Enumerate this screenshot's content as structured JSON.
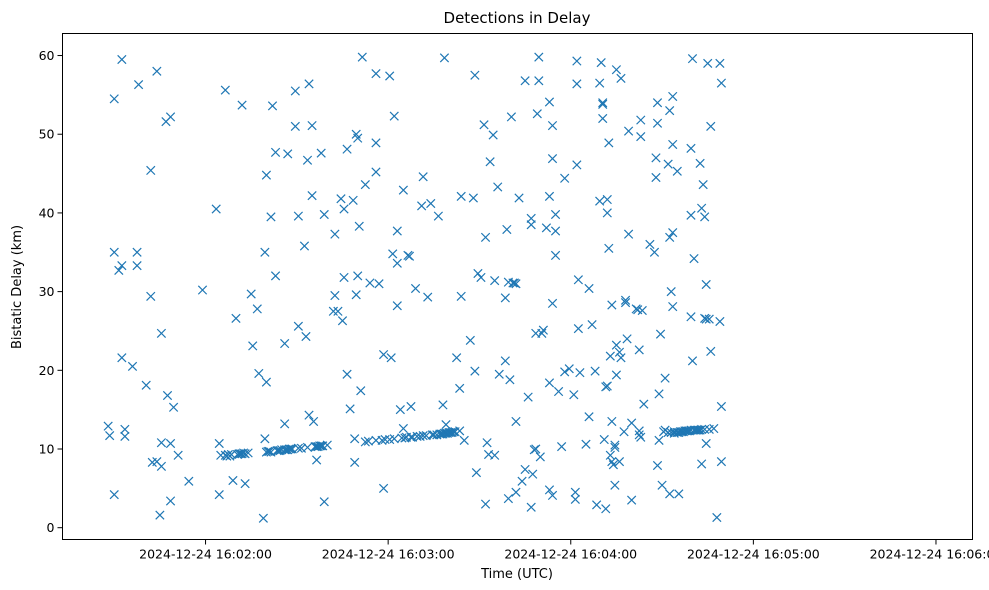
{
  "chart_data": {
    "type": "scatter",
    "title": "Detections in Delay",
    "xlabel": "Time (UTC)",
    "ylabel": "Bistatic Delay (km)",
    "x_unit": "seconds after 2024-12-24 16:00:00 UTC",
    "xlim": [
      73,
      372
    ],
    "ylim": [
      -1.5,
      62.8
    ],
    "grid": false,
    "marker": "x",
    "color": "#1f77b4",
    "x_ticks": [
      {
        "value": 120,
        "label": "2024-12-24 16:02:00"
      },
      {
        "value": 180,
        "label": "2024-12-24 16:03:00"
      },
      {
        "value": 240,
        "label": "2024-12-24 16:04:00"
      },
      {
        "value": 300,
        "label": "2024-12-24 16:05:00"
      },
      {
        "value": 360,
        "label": "2024-12-24 16:06:00"
      }
    ],
    "y_ticks": [
      0,
      10,
      20,
      30,
      40,
      50,
      60
    ],
    "points": [
      [
        88,
        12.9
      ],
      [
        88.5,
        11.7
      ],
      [
        90,
        54.5
      ],
      [
        90,
        35
      ],
      [
        90,
        4.2
      ],
      [
        91.5,
        32.7
      ],
      [
        92.5,
        33.3
      ],
      [
        92.5,
        59.5
      ],
      [
        92.5,
        21.6
      ],
      [
        93.5,
        12.5
      ],
      [
        93.5,
        11.6
      ],
      [
        96,
        20.5
      ],
      [
        97.5,
        35
      ],
      [
        97.5,
        33.3
      ],
      [
        98,
        56.3
      ],
      [
        100.5,
        18.1
      ],
      [
        102,
        45.4
      ],
      [
        102,
        29.4
      ],
      [
        102.5,
        8.3
      ],
      [
        104,
        58
      ],
      [
        104,
        8.4
      ],
      [
        105,
        1.6
      ],
      [
        105.5,
        24.7
      ],
      [
        105.5,
        7.8
      ],
      [
        105.5,
        10.8
      ],
      [
        107,
        51.6
      ],
      [
        107.5,
        16.8
      ],
      [
        108.5,
        52.2
      ],
      [
        108.5,
        10.7
      ],
      [
        108.5,
        3.4
      ],
      [
        109.5,
        15.3
      ],
      [
        111,
        9.2
      ],
      [
        114.5,
        5.9
      ],
      [
        119,
        30.2
      ],
      [
        123.5,
        40.5
      ],
      [
        124.5,
        10.7
      ],
      [
        124.5,
        4.2
      ],
      [
        125,
        9.2
      ],
      [
        126.5,
        55.6
      ],
      [
        126.5,
        9.2
      ],
      [
        127,
        9.1
      ],
      [
        127.5,
        9.3
      ],
      [
        128,
        9.1
      ],
      [
        128.5,
        9.3
      ],
      [
        129,
        6
      ],
      [
        130,
        26.6
      ],
      [
        130.5,
        9.3
      ],
      [
        131,
        9.4
      ],
      [
        131.5,
        9.4
      ],
      [
        132,
        53.7
      ],
      [
        132,
        9.4
      ],
      [
        132.5,
        9.5
      ],
      [
        133,
        5.6
      ],
      [
        133,
        9.4
      ],
      [
        134,
        9.5
      ],
      [
        135,
        29.7
      ],
      [
        135.5,
        23.1
      ],
      [
        137,
        27.8
      ],
      [
        137.5,
        19.6
      ],
      [
        139,
        1.2
      ],
      [
        139.5,
        35
      ],
      [
        139.5,
        11.3
      ],
      [
        140,
        44.8
      ],
      [
        140,
        18.5
      ],
      [
        140,
        9.6
      ],
      [
        140.5,
        9.7
      ],
      [
        141,
        9.7
      ],
      [
        141.5,
        39.5
      ],
      [
        141.5,
        9.6
      ],
      [
        142,
        53.6
      ],
      [
        143,
        32
      ],
      [
        143,
        47.7
      ],
      [
        143.5,
        9.8
      ],
      [
        144,
        9.8
      ],
      [
        144.5,
        9.8
      ],
      [
        145,
        9.9
      ],
      [
        146,
        13.2
      ],
      [
        146,
        23.4
      ],
      [
        146,
        9.9
      ],
      [
        146.5,
        9.9
      ],
      [
        147,
        47.5
      ],
      [
        147,
        9.9
      ],
      [
        147.5,
        10
      ],
      [
        148,
        10
      ],
      [
        148.5,
        10
      ],
      [
        149.5,
        55.5
      ],
      [
        149.5,
        51
      ],
      [
        150.5,
        39.6
      ],
      [
        150.5,
        25.6
      ],
      [
        150.5,
        10.1
      ],
      [
        151.5,
        10.1
      ],
      [
        152.5,
        35.8
      ],
      [
        153,
        24.3
      ],
      [
        153.5,
        46.7
      ],
      [
        153.5,
        10.2
      ],
      [
        154,
        56.4
      ],
      [
        154,
        14.3
      ],
      [
        155,
        42.2
      ],
      [
        155,
        51.1
      ],
      [
        155.5,
        13.5
      ],
      [
        156,
        10.3
      ],
      [
        156.5,
        10.3
      ],
      [
        156.5,
        8.6
      ],
      [
        157,
        10.3
      ],
      [
        157.5,
        10.4
      ],
      [
        158,
        47.6
      ],
      [
        158,
        10.4
      ],
      [
        158.5,
        10.4
      ],
      [
        159,
        39.8
      ],
      [
        159,
        3.3
      ],
      [
        160,
        10.5
      ],
      [
        162,
        27.5
      ],
      [
        162.5,
        37.3
      ],
      [
        162.5,
        29.5
      ],
      [
        163.5,
        27.5
      ],
      [
        164.5,
        41.8
      ],
      [
        165,
        26.3
      ],
      [
        165.5,
        40.5
      ],
      [
        165.5,
        31.8
      ],
      [
        166.5,
        48.1
      ],
      [
        166.5,
        19.5
      ],
      [
        167.5,
        15.1
      ],
      [
        168.5,
        41.6
      ],
      [
        169,
        8.3
      ],
      [
        169,
        11.3
      ],
      [
        169.5,
        50
      ],
      [
        169.5,
        29.6
      ],
      [
        170,
        49.5
      ],
      [
        170,
        32
      ],
      [
        170.5,
        38.3
      ],
      [
        171,
        17.4
      ],
      [
        171.5,
        59.8
      ],
      [
        172.5,
        43.6
      ],
      [
        172.5,
        10.9
      ],
      [
        173.5,
        11
      ],
      [
        174,
        31.1
      ],
      [
        176,
        57.7
      ],
      [
        176,
        48.9
      ],
      [
        176,
        45.2
      ],
      [
        176,
        11.1
      ],
      [
        177,
        31
      ],
      [
        178,
        11.1
      ],
      [
        178.5,
        5
      ],
      [
        178.5,
        22
      ],
      [
        179,
        11.2
      ],
      [
        180.5,
        57.4
      ],
      [
        180.5,
        11.2
      ],
      [
        181,
        21.6
      ],
      [
        181.5,
        34.8
      ],
      [
        182,
        52.3
      ],
      [
        182,
        11.3
      ],
      [
        183,
        37.7
      ],
      [
        183,
        33.6
      ],
      [
        183,
        28.2
      ],
      [
        184,
        15
      ],
      [
        184.5,
        11.4
      ],
      [
        185,
        12.6
      ],
      [
        185,
        42.9
      ],
      [
        185.5,
        11.4
      ],
      [
        186,
        11.5
      ],
      [
        186.5,
        34.6
      ],
      [
        187,
        34.5
      ],
      [
        187.5,
        15.4
      ],
      [
        187.5,
        11.5
      ],
      [
        188,
        11.5
      ],
      [
        189,
        30.4
      ],
      [
        189.5,
        11.6
      ],
      [
        190.5,
        11.6
      ],
      [
        191,
        40.9
      ],
      [
        191.5,
        44.6
      ],
      [
        191.5,
        11.7
      ],
      [
        192.5,
        11.7
      ],
      [
        193,
        29.3
      ],
      [
        194,
        41.2
      ],
      [
        194.5,
        11.8
      ],
      [
        195,
        11.8
      ],
      [
        196,
        11.8
      ],
      [
        196.5,
        39.6
      ],
      [
        197,
        11.9
      ],
      [
        197.5,
        11.9
      ],
      [
        198,
        15.6
      ],
      [
        198,
        11.9
      ],
      [
        198.5,
        59.7
      ],
      [
        198.5,
        12
      ],
      [
        199,
        13.1
      ],
      [
        199,
        12
      ],
      [
        199.5,
        12
      ],
      [
        200,
        12.1
      ],
      [
        200.5,
        12.1
      ],
      [
        201,
        12.1
      ],
      [
        201.5,
        12.2
      ],
      [
        202,
        12.2
      ],
      [
        202.5,
        21.6
      ],
      [
        203.5,
        17.7
      ],
      [
        203.5,
        12.3
      ],
      [
        204,
        29.4
      ],
      [
        204,
        42.1
      ],
      [
        205,
        11.1
      ],
      [
        207,
        23.8
      ],
      [
        208,
        41.9
      ],
      [
        208.5,
        57.5
      ],
      [
        208.5,
        19.9
      ],
      [
        209,
        7
      ],
      [
        209.5,
        32.3
      ],
      [
        210.5,
        31.8
      ],
      [
        211.5,
        51.2
      ],
      [
        212,
        36.9
      ],
      [
        212,
        3
      ],
      [
        212.5,
        10.8
      ],
      [
        213,
        9.3
      ],
      [
        213.5,
        46.5
      ],
      [
        214.5,
        49.9
      ],
      [
        215,
        31.4
      ],
      [
        215,
        9.2
      ],
      [
        216,
        43.3
      ],
      [
        216.5,
        19.5
      ],
      [
        218.5,
        21.2
      ],
      [
        218.5,
        29.2
      ],
      [
        219,
        37.9
      ],
      [
        219.5,
        31.2
      ],
      [
        219.5,
        3.7
      ],
      [
        220,
        18.8
      ],
      [
        220.5,
        52.2
      ],
      [
        221,
        31.1
      ],
      [
        221.5,
        31.1
      ],
      [
        222,
        31
      ],
      [
        222,
        13.5
      ],
      [
        222,
        4.5
      ],
      [
        223,
        41.9
      ],
      [
        224,
        5.9
      ],
      [
        225,
        56.8
      ],
      [
        225,
        7.4
      ],
      [
        226,
        16.6
      ],
      [
        227,
        2.6
      ],
      [
        227,
        39.3
      ],
      [
        227,
        38.5
      ],
      [
        227.5,
        6.8
      ],
      [
        228,
        9.9
      ],
      [
        228.5,
        24.7
      ],
      [
        228.5,
        10
      ],
      [
        229,
        52.6
      ],
      [
        229.5,
        59.8
      ],
      [
        229.5,
        56.8
      ],
      [
        230,
        9
      ],
      [
        230.5,
        24.7
      ],
      [
        231,
        25.1
      ],
      [
        232,
        38.1
      ],
      [
        233,
        54.1
      ],
      [
        233,
        42.1
      ],
      [
        233,
        18.4
      ],
      [
        233,
        4.8
      ],
      [
        234,
        4.1
      ],
      [
        234,
        28.5
      ],
      [
        234,
        51.1
      ],
      [
        234,
        46.9
      ],
      [
        235,
        39.8
      ],
      [
        235,
        34.6
      ],
      [
        235,
        37.7
      ],
      [
        236,
        17.3
      ],
      [
        237,
        10.3
      ],
      [
        238,
        44.4
      ],
      [
        238,
        19.8
      ],
      [
        239.5,
        20.2
      ],
      [
        241,
        16.9
      ],
      [
        241.5,
        4.5
      ],
      [
        241.5,
        3.6
      ],
      [
        242,
        59.3
      ],
      [
        242,
        56.4
      ],
      [
        242,
        46.1
      ],
      [
        242.5,
        31.5
      ],
      [
        242.5,
        25.3
      ],
      [
        243,
        19.7
      ],
      [
        245,
        10.6
      ],
      [
        246,
        14.1
      ],
      [
        246,
        30.4
      ],
      [
        247,
        25.8
      ],
      [
        248,
        19.9
      ],
      [
        248.5,
        2.9
      ],
      [
        249.5,
        41.5
      ],
      [
        249.5,
        56.5
      ],
      [
        250,
        59.1
      ],
      [
        250.5,
        54
      ],
      [
        250.5,
        53.8
      ],
      [
        250.5,
        52
      ],
      [
        251,
        11.2
      ],
      [
        251.5,
        17.9
      ],
      [
        251.5,
        2.4
      ],
      [
        252,
        18
      ],
      [
        252,
        40
      ],
      [
        252,
        41.7
      ],
      [
        252.5,
        35.5
      ],
      [
        252.5,
        48.9
      ],
      [
        253,
        9.2
      ],
      [
        253,
        21.8
      ],
      [
        253.5,
        28.3
      ],
      [
        253.5,
        13.5
      ],
      [
        253.5,
        8.4
      ],
      [
        254,
        8
      ],
      [
        254.5,
        10.2
      ],
      [
        254.5,
        10.5
      ],
      [
        254.5,
        5.4
      ],
      [
        255,
        58.2
      ],
      [
        255,
        23.2
      ],
      [
        255,
        19.4
      ],
      [
        256,
        22.3
      ],
      [
        256,
        8.4
      ],
      [
        256.5,
        57.1
      ],
      [
        256.5,
        21.6
      ],
      [
        257.5,
        12.2
      ],
      [
        258,
        28.6
      ],
      [
        258,
        28.9
      ],
      [
        258.5,
        24
      ],
      [
        259,
        50.4
      ],
      [
        259,
        37.3
      ],
      [
        260,
        3.5
      ],
      [
        260,
        13.3
      ],
      [
        261.5,
        27.8
      ],
      [
        262,
        27.7
      ],
      [
        262.5,
        12.3
      ],
      [
        262.5,
        22.6
      ],
      [
        262.5,
        11.8
      ],
      [
        263,
        49.7
      ],
      [
        263,
        51.8
      ],
      [
        263,
        11.5
      ],
      [
        263.5,
        27.6
      ],
      [
        264,
        15.7
      ],
      [
        266,
        36
      ],
      [
        267.5,
        35
      ],
      [
        268,
        47
      ],
      [
        268,
        44.5
      ],
      [
        268.5,
        54
      ],
      [
        268.5,
        51.4
      ],
      [
        268.5,
        7.9
      ],
      [
        269,
        11.1
      ],
      [
        269,
        17
      ],
      [
        269.5,
        24.6
      ],
      [
        270,
        5.4
      ],
      [
        270.5,
        12.2
      ],
      [
        271,
        19
      ],
      [
        271,
        12.4
      ],
      [
        272,
        46.2
      ],
      [
        272,
        12.1
      ],
      [
        272.5,
        53
      ],
      [
        272.5,
        36.9
      ],
      [
        272.5,
        4.3
      ],
      [
        273,
        30
      ],
      [
        273,
        12.1
      ],
      [
        273.5,
        54.8
      ],
      [
        273.5,
        48.7
      ],
      [
        273.5,
        28.1
      ],
      [
        273.5,
        37.5
      ],
      [
        274,
        12
      ],
      [
        274,
        12.2
      ],
      [
        275,
        45.3
      ],
      [
        275,
        12.1
      ],
      [
        275.5,
        4.3
      ],
      [
        275.5,
        12.1
      ],
      [
        276,
        12.2
      ],
      [
        276.5,
        12.2
      ],
      [
        277,
        12.2
      ],
      [
        277.5,
        12.3
      ],
      [
        278,
        12.3
      ],
      [
        278.5,
        12.3
      ],
      [
        279,
        12.3
      ],
      [
        279.5,
        48.2
      ],
      [
        279.5,
        39.7
      ],
      [
        279.5,
        26.8
      ],
      [
        279.5,
        12.4
      ],
      [
        280,
        59.6
      ],
      [
        280,
        21.2
      ],
      [
        280.5,
        34.2
      ],
      [
        280.5,
        12.4
      ],
      [
        281,
        12.4
      ],
      [
        281.5,
        12.4
      ],
      [
        282,
        12.4
      ],
      [
        282.5,
        46.3
      ],
      [
        282.5,
        12.4
      ],
      [
        283,
        8.1
      ],
      [
        283,
        40.6
      ],
      [
        283,
        12.5
      ],
      [
        283.5,
        43.6
      ],
      [
        284,
        39.5
      ],
      [
        284,
        26.6
      ],
      [
        284,
        12.5
      ],
      [
        284.5,
        26.5
      ],
      [
        284.5,
        30.9
      ],
      [
        284.5,
        10.7
      ],
      [
        285,
        59
      ],
      [
        285.5,
        12.5
      ],
      [
        285.5,
        26.5
      ],
      [
        286,
        51
      ],
      [
        286,
        22.4
      ],
      [
        287,
        12.6
      ],
      [
        288,
        1.3
      ],
      [
        289,
        59
      ],
      [
        289,
        26.2
      ],
      [
        289.5,
        15.4
      ],
      [
        289.5,
        8.4
      ],
      [
        289.5,
        56.5
      ]
    ]
  }
}
